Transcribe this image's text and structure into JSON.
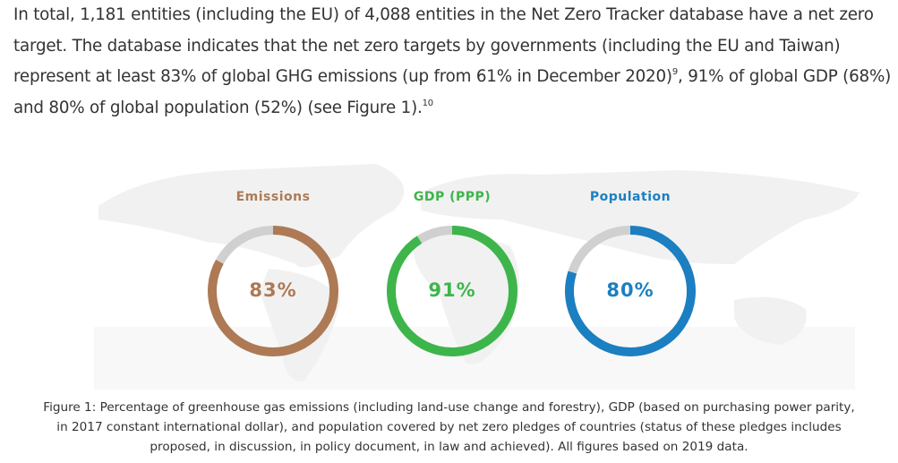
{
  "paragraph": [
    "In total, 1,181 entities (including the EU) of 4,088 entities in the Net Zero Tracker database have a net zero target. The database indicates that the net zero targets by governments (including the EU and Taiwan) represent at least 83% of global GHG emissions (up from 61% in December 2020)",
    "9",
    ", 91% of global GDP (68%) and 80% of global population (52%) (see Figure 1).",
    "10"
  ],
  "chart_data": [
    {
      "type": "donut",
      "title": "Emissions",
      "values": [
        83,
        17
      ],
      "value_labels": [
        "83%",
        null
      ],
      "colors": [
        "#ad7a55",
        "#d0d0d0"
      ]
    },
    {
      "type": "donut",
      "title": "GDP (PPP)",
      "values": [
        91,
        9
      ],
      "value_labels": [
        "91%",
        null
      ],
      "colors": [
        "#3db54a",
        "#d0d0d0"
      ]
    },
    {
      "type": "donut",
      "title": "Population",
      "values": [
        80,
        20
      ],
      "value_labels": [
        "80%",
        null
      ],
      "colors": [
        "#1b7fc1",
        "#d0d0d0"
      ]
    }
  ],
  "caption": "Figure 1: Percentage of greenhouse gas emissions (including land-use change and forestry), GDP (based on purchasing power parity, in 2017 constant international dollar), and population covered by net zero pledges of countries (status of these pledges includes proposed, in discussion, in policy document, in law and achieved). All figures based on 2019 data."
}
